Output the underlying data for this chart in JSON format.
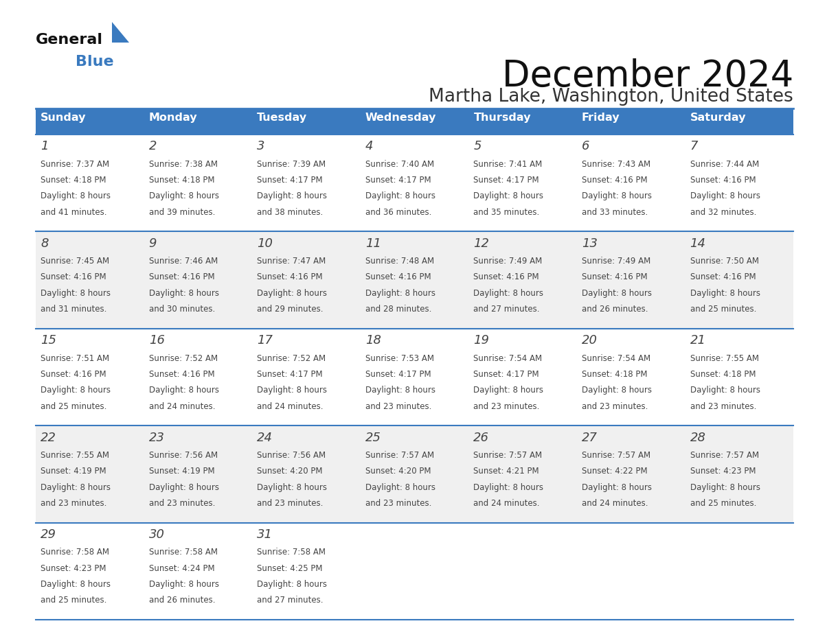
{
  "title": "December 2024",
  "subtitle": "Martha Lake, Washington, United States",
  "header_color": "#3a7abf",
  "header_text_color": "#ffffff",
  "day_names": [
    "Sunday",
    "Monday",
    "Tuesday",
    "Wednesday",
    "Thursday",
    "Friday",
    "Saturday"
  ],
  "bg_color": "#ffffff",
  "cell_bg_white": "#ffffff",
  "cell_bg_gray": "#f0f0f0",
  "divider_color": "#3a7abf",
  "text_color": "#444444",
  "days": [
    {
      "day": 1,
      "col": 0,
      "row": 0,
      "sunrise": "7:37 AM",
      "sunset": "4:18 PM",
      "daylight_min": "41"
    },
    {
      "day": 2,
      "col": 1,
      "row": 0,
      "sunrise": "7:38 AM",
      "sunset": "4:18 PM",
      "daylight_min": "39"
    },
    {
      "day": 3,
      "col": 2,
      "row": 0,
      "sunrise": "7:39 AM",
      "sunset": "4:17 PM",
      "daylight_min": "38"
    },
    {
      "day": 4,
      "col": 3,
      "row": 0,
      "sunrise": "7:40 AM",
      "sunset": "4:17 PM",
      "daylight_min": "36"
    },
    {
      "day": 5,
      "col": 4,
      "row": 0,
      "sunrise": "7:41 AM",
      "sunset": "4:17 PM",
      "daylight_min": "35"
    },
    {
      "day": 6,
      "col": 5,
      "row": 0,
      "sunrise": "7:43 AM",
      "sunset": "4:16 PM",
      "daylight_min": "33"
    },
    {
      "day": 7,
      "col": 6,
      "row": 0,
      "sunrise": "7:44 AM",
      "sunset": "4:16 PM",
      "daylight_min": "32"
    },
    {
      "day": 8,
      "col": 0,
      "row": 1,
      "sunrise": "7:45 AM",
      "sunset": "4:16 PM",
      "daylight_min": "31"
    },
    {
      "day": 9,
      "col": 1,
      "row": 1,
      "sunrise": "7:46 AM",
      "sunset": "4:16 PM",
      "daylight_min": "30"
    },
    {
      "day": 10,
      "col": 2,
      "row": 1,
      "sunrise": "7:47 AM",
      "sunset": "4:16 PM",
      "daylight_min": "29"
    },
    {
      "day": 11,
      "col": 3,
      "row": 1,
      "sunrise": "7:48 AM",
      "sunset": "4:16 PM",
      "daylight_min": "28"
    },
    {
      "day": 12,
      "col": 4,
      "row": 1,
      "sunrise": "7:49 AM",
      "sunset": "4:16 PM",
      "daylight_min": "27"
    },
    {
      "day": 13,
      "col": 5,
      "row": 1,
      "sunrise": "7:49 AM",
      "sunset": "4:16 PM",
      "daylight_min": "26"
    },
    {
      "day": 14,
      "col": 6,
      "row": 1,
      "sunrise": "7:50 AM",
      "sunset": "4:16 PM",
      "daylight_min": "25"
    },
    {
      "day": 15,
      "col": 0,
      "row": 2,
      "sunrise": "7:51 AM",
      "sunset": "4:16 PM",
      "daylight_min": "25"
    },
    {
      "day": 16,
      "col": 1,
      "row": 2,
      "sunrise": "7:52 AM",
      "sunset": "4:16 PM",
      "daylight_min": "24"
    },
    {
      "day": 17,
      "col": 2,
      "row": 2,
      "sunrise": "7:52 AM",
      "sunset": "4:17 PM",
      "daylight_min": "24"
    },
    {
      "day": 18,
      "col": 3,
      "row": 2,
      "sunrise": "7:53 AM",
      "sunset": "4:17 PM",
      "daylight_min": "23"
    },
    {
      "day": 19,
      "col": 4,
      "row": 2,
      "sunrise": "7:54 AM",
      "sunset": "4:17 PM",
      "daylight_min": "23"
    },
    {
      "day": 20,
      "col": 5,
      "row": 2,
      "sunrise": "7:54 AM",
      "sunset": "4:18 PM",
      "daylight_min": "23"
    },
    {
      "day": 21,
      "col": 6,
      "row": 2,
      "sunrise": "7:55 AM",
      "sunset": "4:18 PM",
      "daylight_min": "23"
    },
    {
      "day": 22,
      "col": 0,
      "row": 3,
      "sunrise": "7:55 AM",
      "sunset": "4:19 PM",
      "daylight_min": "23"
    },
    {
      "day": 23,
      "col": 1,
      "row": 3,
      "sunrise": "7:56 AM",
      "sunset": "4:19 PM",
      "daylight_min": "23"
    },
    {
      "day": 24,
      "col": 2,
      "row": 3,
      "sunrise": "7:56 AM",
      "sunset": "4:20 PM",
      "daylight_min": "23"
    },
    {
      "day": 25,
      "col": 3,
      "row": 3,
      "sunrise": "7:57 AM",
      "sunset": "4:20 PM",
      "daylight_min": "23"
    },
    {
      "day": 26,
      "col": 4,
      "row": 3,
      "sunrise": "7:57 AM",
      "sunset": "4:21 PM",
      "daylight_min": "24"
    },
    {
      "day": 27,
      "col": 5,
      "row": 3,
      "sunrise": "7:57 AM",
      "sunset": "4:22 PM",
      "daylight_min": "24"
    },
    {
      "day": 28,
      "col": 6,
      "row": 3,
      "sunrise": "7:57 AM",
      "sunset": "4:23 PM",
      "daylight_min": "25"
    },
    {
      "day": 29,
      "col": 0,
      "row": 4,
      "sunrise": "7:58 AM",
      "sunset": "4:23 PM",
      "daylight_min": "25"
    },
    {
      "day": 30,
      "col": 1,
      "row": 4,
      "sunrise": "7:58 AM",
      "sunset": "4:24 PM",
      "daylight_min": "26"
    },
    {
      "day": 31,
      "col": 2,
      "row": 4,
      "sunrise": "7:58 AM",
      "sunset": "4:25 PM",
      "daylight_min": "27"
    }
  ],
  "num_rows": 5
}
